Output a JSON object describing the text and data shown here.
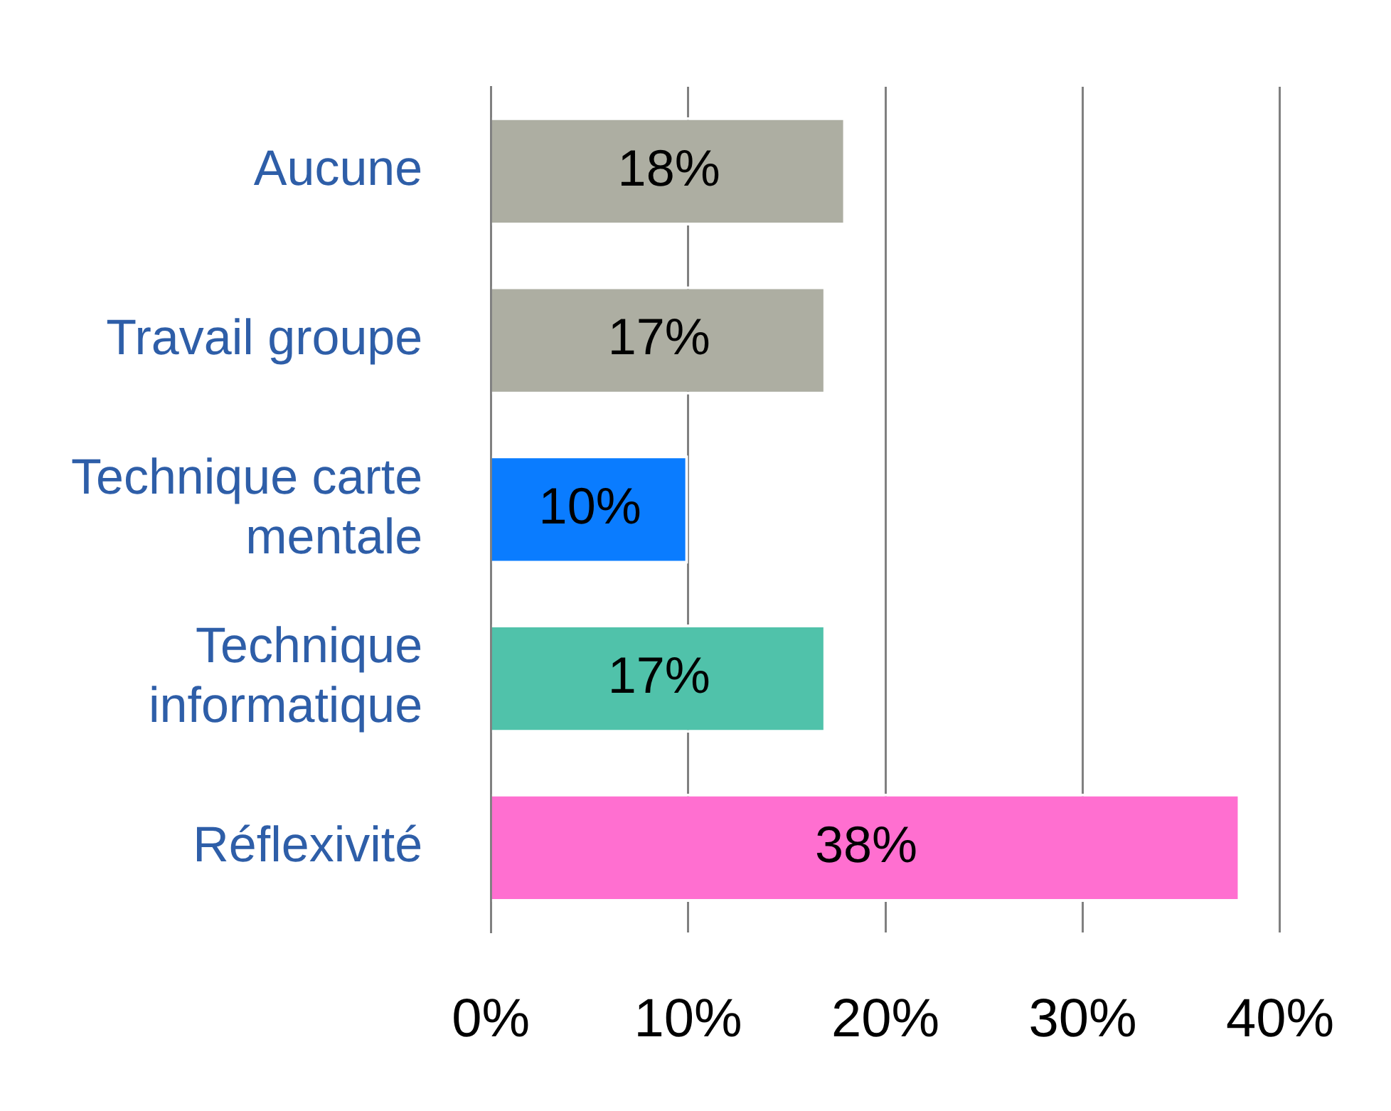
{
  "chart_data": {
    "type": "bar",
    "orientation": "horizontal",
    "categories": [
      "Aucune",
      "Travail groupe",
      "Technique carte mentale",
      "Technique informatique",
      "Réflexivité"
    ],
    "values": [
      18,
      17,
      10,
      17,
      38
    ],
    "colors": [
      "#adaea2",
      "#adaea2",
      "#0a7cff",
      "#50c2aa",
      "#ff6fd0"
    ],
    "value_labels": [
      "18%",
      "17%",
      "10%",
      "17%",
      "38%"
    ],
    "xlim": [
      0,
      40
    ],
    "xticks": [
      {
        "value": 0,
        "label": "0%"
      },
      {
        "value": 10,
        "label": "10%"
      },
      {
        "value": 20,
        "label": "20%"
      },
      {
        "value": 30,
        "label": "30%"
      },
      {
        "value": 40,
        "label": "40%"
      }
    ],
    "grid": "x",
    "legend": false
  }
}
